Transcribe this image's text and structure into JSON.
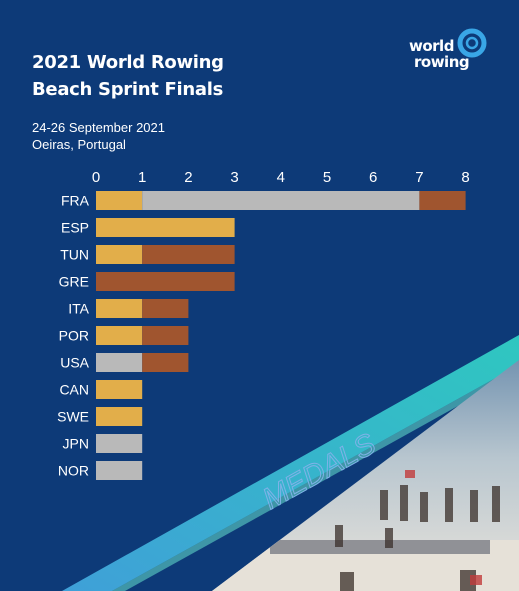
{
  "header": {
    "title_line1": "2021 World Rowing",
    "title_line2": "Beach Sprint Finals",
    "dates": "24-26 September 2021",
    "location": "Oeiras, Portugal"
  },
  "logo": {
    "line1": "world",
    "line2": "rowing",
    "icon": "ring-logo-icon"
  },
  "decor": {
    "medals_label": "MEDALS"
  },
  "colors": {
    "gold": "#e2ae4a",
    "silver": "#b9b9b9",
    "bronze": "#a0552f",
    "background": "#0d3a78",
    "text": "#ffffff"
  },
  "chart_data": {
    "type": "bar",
    "orientation": "horizontal",
    "stacked": true,
    "categories": [
      "FRA",
      "ESP",
      "TUN",
      "GRE",
      "ITA",
      "POR",
      "USA",
      "CAN",
      "SWE",
      "JPN",
      "NOR"
    ],
    "series": [
      {
        "key": "gold",
        "values": [
          1,
          3,
          1,
          0,
          1,
          1,
          0,
          1,
          1,
          0,
          0
        ]
      },
      {
        "key": "silver",
        "values": [
          6,
          0,
          0,
          0,
          0,
          0,
          1,
          0,
          0,
          1,
          1
        ]
      },
      {
        "key": "bronze",
        "values": [
          1,
          0,
          2,
          3,
          1,
          1,
          1,
          0,
          0,
          0,
          0
        ]
      }
    ],
    "xlim": [
      0,
      8
    ],
    "xticks": [
      0,
      1,
      2,
      3,
      4,
      5,
      6,
      7,
      8
    ],
    "grid": false,
    "legend": "none"
  }
}
